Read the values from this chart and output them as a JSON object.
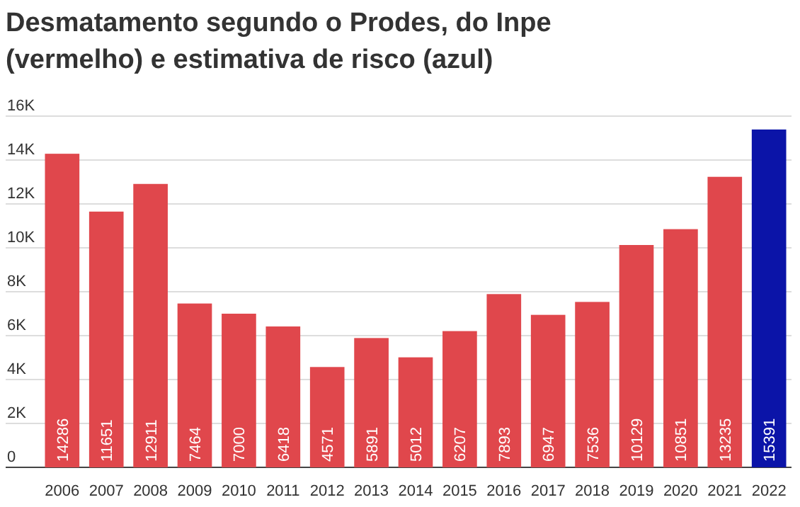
{
  "chart_data": {
    "type": "bar",
    "title": "Desmatamento segundo o Prodes, do Inpe (vermelho) e estimativa de risco (azul)",
    "categories": [
      "2006",
      "2007",
      "2008",
      "2009",
      "2010",
      "2011",
      "2012",
      "2013",
      "2014",
      "2015",
      "2016",
      "2017",
      "2018",
      "2019",
      "2020",
      "2021",
      "2022"
    ],
    "values": [
      14286,
      11651,
      12911,
      7464,
      7000,
      6418,
      4571,
      5891,
      5012,
      6207,
      7893,
      6947,
      7536,
      10129,
      10851,
      13235,
      15391
    ],
    "colors": [
      "#e0474c",
      "#e0474c",
      "#e0474c",
      "#e0474c",
      "#e0474c",
      "#e0474c",
      "#e0474c",
      "#e0474c",
      "#e0474c",
      "#e0474c",
      "#e0474c",
      "#e0474c",
      "#e0474c",
      "#e0474c",
      "#e0474c",
      "#e0474c",
      "#0b14a8"
    ],
    "ylim": [
      0,
      16000
    ],
    "yticks": [
      0,
      {
        "value": 2000,
        "label": "2K"
      },
      {
        "value": 4000,
        "label": "4K"
      },
      {
        "value": 6000,
        "label": "6K"
      },
      {
        "value": 8000,
        "label": "8K"
      },
      {
        "value": 10000,
        "label": "10K"
      },
      {
        "value": 12000,
        "label": "12K"
      },
      {
        "value": 14000,
        "label": "14K"
      },
      {
        "value": 16000,
        "label": "16K"
      }
    ],
    "grid": "y",
    "data_labels": true
  }
}
